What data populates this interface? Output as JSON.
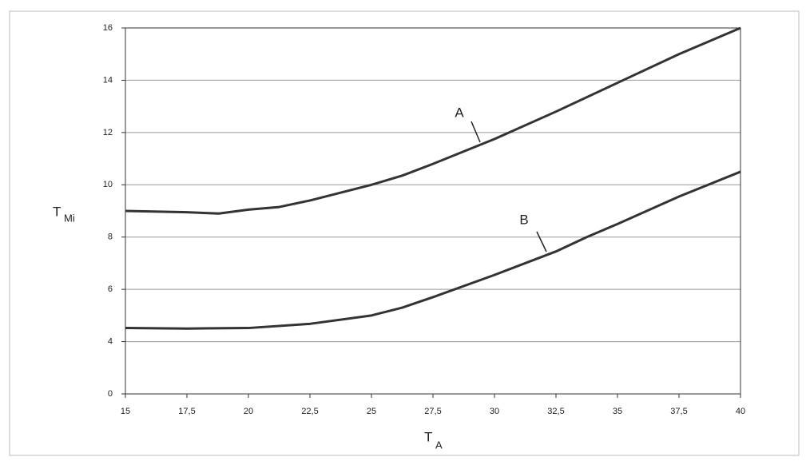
{
  "chart_data": {
    "type": "line",
    "xlabel": {
      "main": "T",
      "sub": "A"
    },
    "ylabel": {
      "main": "T",
      "sub": "Mi"
    },
    "xlim": [
      15,
      40
    ],
    "xticks": [
      15,
      {
        "value": 17.5,
        "label": "17,5"
      },
      20,
      {
        "value": 22.5,
        "label": "22,5"
      },
      25,
      {
        "value": 27.5,
        "label": "27,5"
      },
      30,
      {
        "value": 32.5,
        "label": "32,5"
      },
      35,
      {
        "value": 37.5,
        "label": "37,5"
      },
      40
    ],
    "ylim": [
      0,
      16
    ],
    "yticks": [
      0,
      4,
      6,
      8,
      10,
      12,
      14,
      16
    ],
    "grid": true,
    "series": [
      {
        "name": "A",
        "color": "#333333",
        "x": [
          15,
          17.5,
          18.8,
          20,
          21.25,
          22.5,
          25,
          26.25,
          27.5,
          30,
          32.5,
          35,
          37.5,
          40
        ],
        "values": [
          9.0,
          8.95,
          8.9,
          9.05,
          9.15,
          9.4,
          10.0,
          10.35,
          10.8,
          11.75,
          12.8,
          13.9,
          15.0,
          16.0
        ]
      },
      {
        "name": "B",
        "color": "#333333",
        "x": [
          15,
          17.5,
          20,
          22.5,
          25,
          26.25,
          27.5,
          30,
          32.5,
          33.75,
          35,
          37.5,
          40
        ],
        "values": [
          4.52,
          4.5,
          4.52,
          4.68,
          5.0,
          5.3,
          5.7,
          6.55,
          7.45,
          8.0,
          8.5,
          9.55,
          10.5
        ]
      }
    ]
  }
}
